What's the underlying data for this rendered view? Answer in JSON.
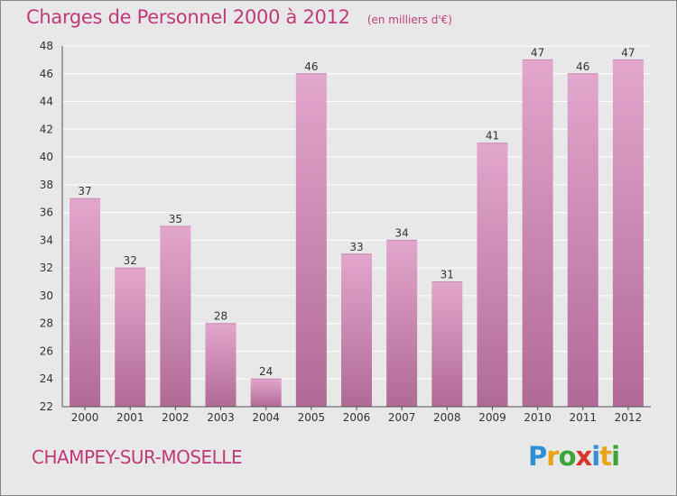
{
  "header": {
    "title": "Charges de Personnel 2000 à 2012",
    "subtitle": "(en milliers d'€)"
  },
  "footer": {
    "commune": "CHAMPEY-SUR-MOSELLE",
    "brand": "Proxiti",
    "brand_letters": [
      {
        "ch": "P",
        "color": "#2f8fd6"
      },
      {
        "ch": "r",
        "color": "#e8a317"
      },
      {
        "ch": "o",
        "color": "#3aa63a"
      },
      {
        "ch": "x",
        "color": "#d9332a"
      },
      {
        "ch": "i",
        "color": "#2f8fd6"
      },
      {
        "ch": "t",
        "color": "#e8a317"
      },
      {
        "ch": "i",
        "color": "#3aa63a"
      }
    ]
  },
  "chart_data": {
    "type": "bar",
    "title": "Charges de Personnel 2000 à 2012",
    "subtitle": "(en milliers d'€)",
    "categories": [
      "2000",
      "2001",
      "2002",
      "2003",
      "2004",
      "2005",
      "2006",
      "2007",
      "2008",
      "2009",
      "2010",
      "2011",
      "2012"
    ],
    "values": [
      37,
      32,
      35,
      28,
      24,
      46,
      33,
      34,
      31,
      41,
      47,
      46,
      47
    ],
    "ylim": [
      22,
      48
    ],
    "yticks": [
      22,
      24,
      26,
      28,
      30,
      32,
      34,
      36,
      38,
      40,
      42,
      44,
      46,
      48
    ],
    "grid": true,
    "bar_color_top": "#e3a6cd",
    "bar_color_bottom": "#b06a96",
    "grid_color": "#ffffff",
    "label_color": "#333333"
  }
}
